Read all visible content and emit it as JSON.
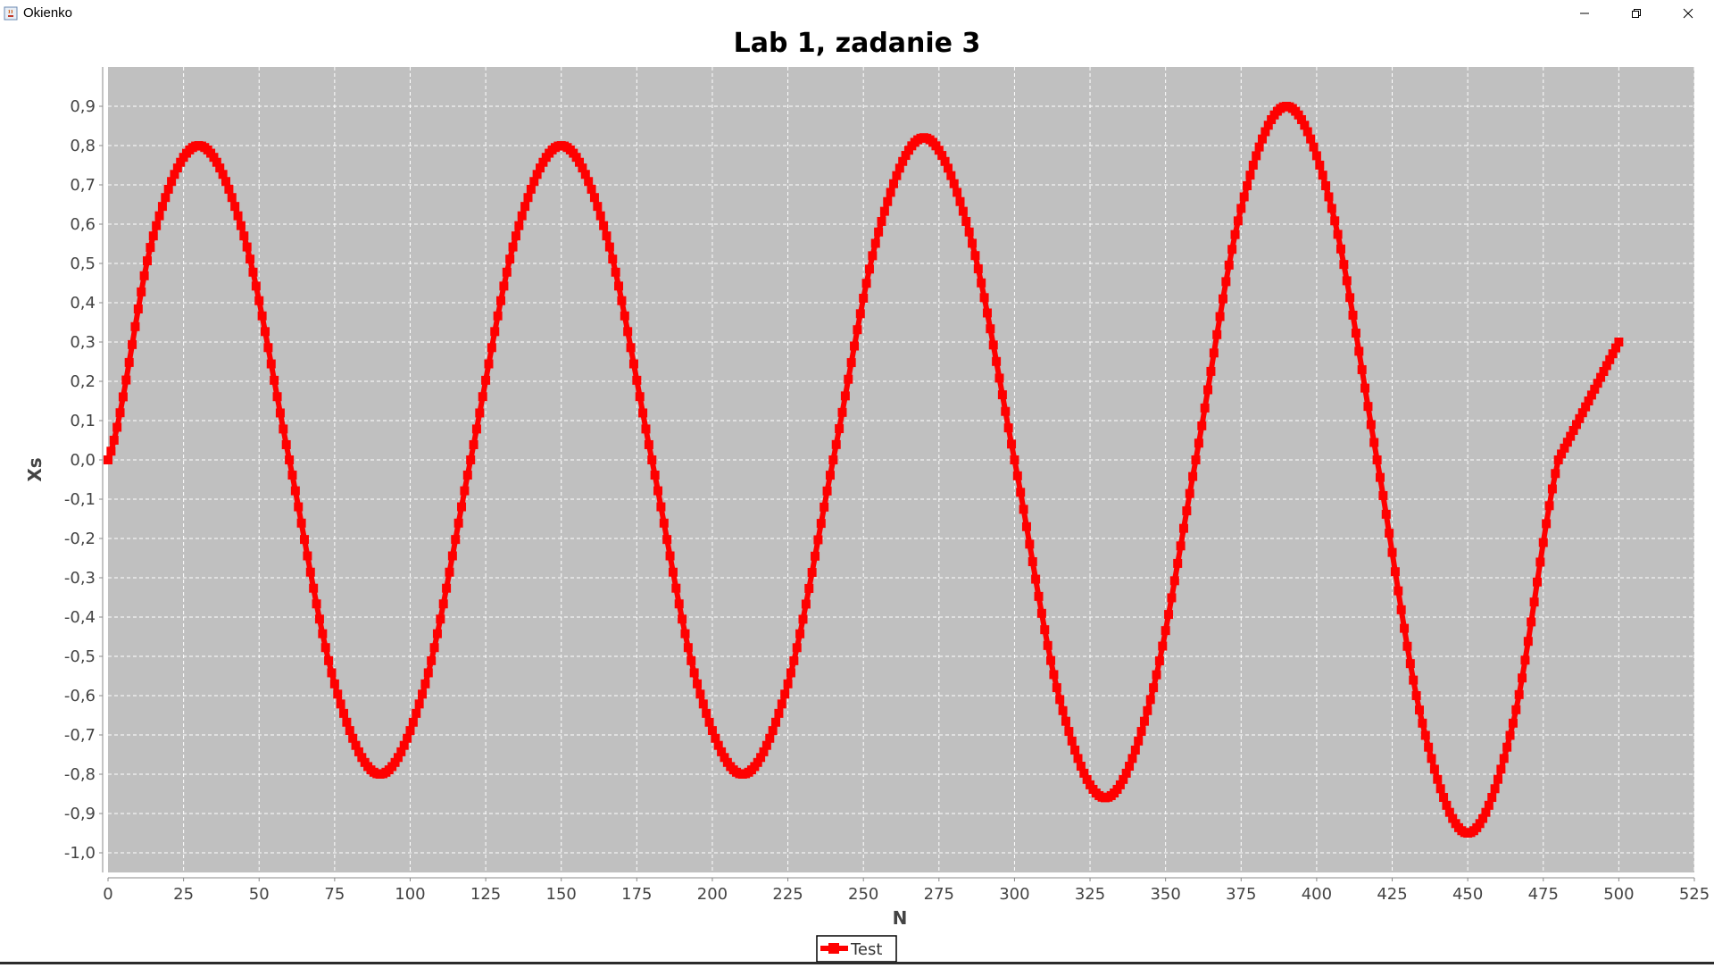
{
  "window": {
    "title": "Okienko",
    "icon": "java-cup-icon",
    "controls": [
      "minimize-icon",
      "restore-icon",
      "close-icon"
    ]
  },
  "colors": {
    "plot_background": "#c0c0c0",
    "series": "#ff0000",
    "gridline": "#ffffff",
    "text": "#444444",
    "title": "#000000"
  },
  "chart_data": {
    "type": "line",
    "title": "Lab 1, zadanie 3",
    "xlabel": "N",
    "ylabel": "Xs",
    "xlim": [
      0,
      525
    ],
    "ylim": [
      -1.05,
      1.0
    ],
    "xticks": [
      0,
      25,
      50,
      75,
      100,
      125,
      150,
      175,
      200,
      225,
      250,
      275,
      300,
      325,
      350,
      375,
      400,
      425,
      450,
      475,
      500,
      525
    ],
    "xtick_labels": [
      "0",
      "25",
      "50",
      "75",
      "100",
      "125",
      "150",
      "175",
      "200",
      "225",
      "250",
      "275",
      "300",
      "325",
      "350",
      "375",
      "400",
      "425",
      "450",
      "475",
      "500",
      "525"
    ],
    "yticks": [
      0.9,
      0.8,
      0.7,
      0.6,
      0.5,
      0.4,
      0.3,
      0.2,
      0.1,
      0.0,
      -0.1,
      -0.2,
      -0.3,
      -0.4,
      -0.5,
      -0.6,
      -0.7,
      -0.8,
      -0.9,
      -1.0
    ],
    "ytick_labels": [
      "0,9",
      "0,8",
      "0,7",
      "0,6",
      "0,5",
      "0,4",
      "0,3",
      "0,2",
      "0,1",
      "0,0",
      "-0,1",
      "-0,2",
      "-0,3",
      "-0,4",
      "-0,5",
      "-0,6",
      "-0,7",
      "-0,8",
      "-0,9",
      "-1,0"
    ],
    "grid": true,
    "legend_position": "bottom-center",
    "series": [
      {
        "name": "Test",
        "color": "#ff0000",
        "marker": "square",
        "points": [
          [
            0,
            0.0
          ],
          [
            15,
            0.57
          ],
          [
            30,
            0.8
          ],
          [
            45,
            0.57
          ],
          [
            60,
            0.0
          ],
          [
            75,
            -0.57
          ],
          [
            90,
            -0.8
          ],
          [
            105,
            -0.57
          ],
          [
            120,
            0.0
          ],
          [
            135,
            0.57
          ],
          [
            150,
            0.8
          ],
          [
            165,
            0.57
          ],
          [
            180,
            0.0
          ],
          [
            195,
            -0.57
          ],
          [
            210,
            -0.8
          ],
          [
            225,
            -0.57
          ],
          [
            240,
            0.0
          ],
          [
            255,
            0.58
          ],
          [
            270,
            0.82
          ],
          [
            285,
            0.58
          ],
          [
            300,
            0.0
          ],
          [
            315,
            -0.61
          ],
          [
            330,
            -0.86
          ],
          [
            345,
            -0.61
          ],
          [
            360,
            0.0
          ],
          [
            375,
            0.64
          ],
          [
            390,
            0.9
          ],
          [
            405,
            0.64
          ],
          [
            420,
            0.0
          ],
          [
            435,
            -0.67
          ],
          [
            450,
            -0.95
          ],
          [
            465,
            -0.67
          ],
          [
            480,
            0.0
          ],
          [
            500,
            0.3
          ]
        ]
      }
    ]
  }
}
